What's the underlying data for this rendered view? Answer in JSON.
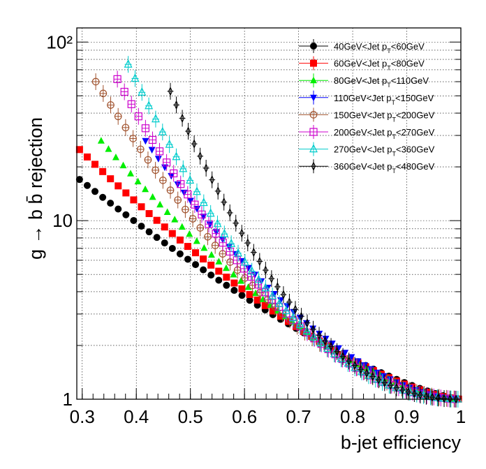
{
  "chart_data": {
    "type": "scatter",
    "xlabel": "b-jet efficiency",
    "ylabel": "g → b b̄ rejection",
    "xlim": [
      0.29,
      1.0
    ],
    "ylim": [
      1,
      120
    ],
    "yscale": "log",
    "grid": true,
    "legend_position": "top-right",
    "x_ticks": [
      "0.3",
      "0.4",
      "0.5",
      "0.6",
      "0.7",
      "0.8",
      "0.9",
      "1"
    ],
    "y_ticks": [
      "1",
      "10",
      "10²"
    ],
    "series": [
      {
        "legend_text": "40GeV<Jet p",
        "legend_sub": "T",
        "legend_tail": "<60GeV",
        "color": "#000000",
        "marker": "filled-circle",
        "x_start": 0.295,
        "x_step": 0.0143,
        "n": 50,
        "y_start": 17.0,
        "y_a": 6.15,
        "y_b": 2.1
      },
      {
        "legend_text": "60GeV<Jet p",
        "legend_sub": "T",
        "legend_tail": "<80GeV",
        "color": "#ff0000",
        "marker": "filled-square",
        "x_start": 0.295,
        "x_step": 0.0143,
        "n": 50,
        "y_start": 25.0,
        "y_a": 10.5,
        "y_b": 2.4
      },
      {
        "legend_text": "80GeV<Jet p",
        "legend_sub": "T",
        "legend_tail": "<110GeV",
        "color": "#00ee00",
        "marker": "filled-triangle-up",
        "x_start": 0.335,
        "x_step": 0.0136,
        "n": 49,
        "y_start": 28.0,
        "y_a": 15.8,
        "y_b": 2.7
      },
      {
        "legend_text": "110GeV<Jet p",
        "legend_sub": "T",
        "legend_tail": "<150GeV",
        "color": "#0000ff",
        "marker": "filled-triangle-down",
        "x_start": 0.417,
        "x_step": 0.0119,
        "n": 49,
        "y_start": 28.0,
        "y_a": 26.0,
        "y_b": 3.0
      },
      {
        "legend_text": "150GeV<Jet p",
        "legend_sub": "T",
        "legend_tail": "<200GeV",
        "color": "#a0522d",
        "marker": "open-diamond",
        "x_start": 0.325,
        "x_step": 0.0138,
        "n": 50,
        "y_start": 60.0,
        "y_a": 40.0,
        "y_b": 3.3
      },
      {
        "legend_text": "200GeV<Jet p",
        "legend_sub": "T",
        "legend_tail": "<270GeV",
        "color": "#cc00cc",
        "marker": "open-square",
        "x_start": 0.365,
        "x_step": 0.013,
        "n": 50,
        "y_start": 62.0,
        "y_a": 52.0,
        "y_b": 3.6
      },
      {
        "legend_text": "270GeV<Jet p",
        "legend_sub": "T",
        "legend_tail": "<360GeV",
        "color": "#00cccc",
        "marker": "open-triangle-up",
        "x_start": 0.385,
        "x_step": 0.0127,
        "n": 49,
        "y_start": 75.0,
        "y_a": 65.0,
        "y_b": 3.8
      },
      {
        "legend_text": "360GeV<Jet p",
        "legend_sub": "T",
        "legend_tail": "<480GeV",
        "color": "#000000",
        "marker": "open-thin-diamond",
        "x_start": 0.463,
        "x_step": 0.011,
        "n": 49,
        "y_start": 53.0,
        "y_a": 70.0,
        "y_b": 4.0
      }
    ]
  }
}
